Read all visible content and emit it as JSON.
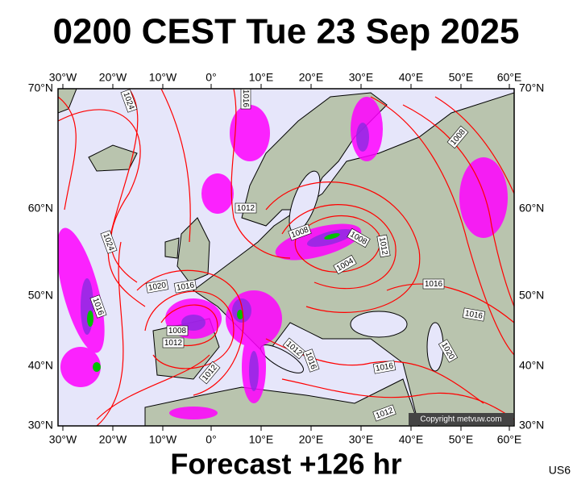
{
  "title": "0200 CEST Tue 23 Sep 2025",
  "footer": "Forecast +126 hr",
  "code": "US6",
  "copyright": "Copyright metvuw.com",
  "longitude_labels": [
    "30°W",
    "20°W",
    "10°W",
    "0°",
    "10°E",
    "20°E",
    "30°E",
    "40°E",
    "50°E",
    "60°E"
  ],
  "latitude_labels": [
    "70°N",
    "60°N",
    "50°N",
    "40°N",
    "30°N"
  ],
  "isobar_labels": [
    "1024",
    "1016",
    "1012",
    "1024",
    "1008",
    "1008",
    "1012",
    "1004",
    "1016",
    "1020",
    "1016",
    "1016",
    "1008",
    "1012",
    "1016",
    "1008",
    "1020",
    "1012",
    "1012",
    "1016",
    "1016",
    "1012"
  ]
}
